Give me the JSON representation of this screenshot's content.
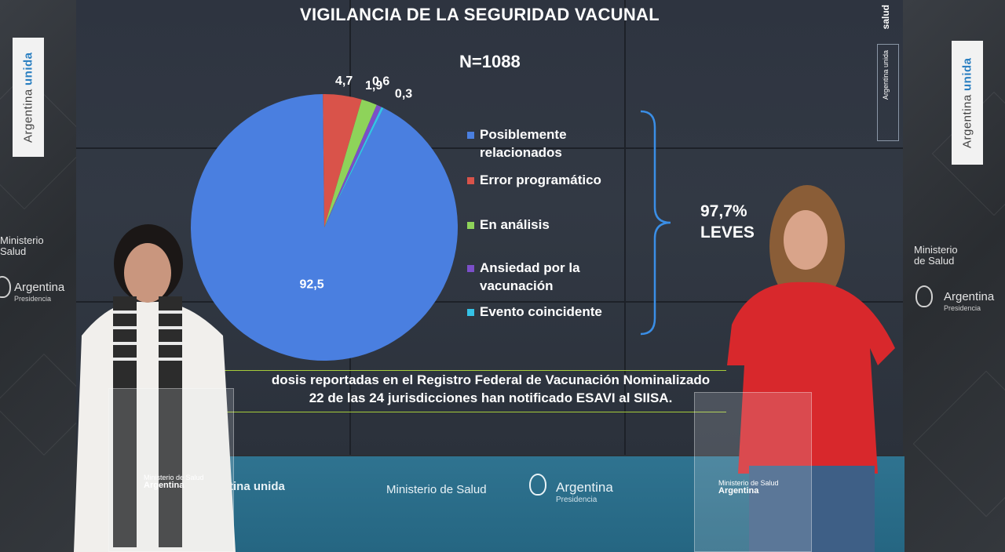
{
  "screen": {
    "title": "VIGILANCIA DE LA  SEGURIDAD VACUNAL",
    "n_label": "N=1088",
    "brand_salud": "salud",
    "brand_argentina": "Argentina unida",
    "summary_pct": "97,7%",
    "summary_label": "LEVES",
    "footnote_line1": "dosis reportadas en el Registro Federal de Vacunación Nominalizado",
    "footnote_line2": "22 de las 24 jurisdicciones han notificado ESAVI al SIISA."
  },
  "chart_data": {
    "type": "pie",
    "title": "VIGILANCIA DE LA  SEGURIDAD VACUNAL",
    "subtitle": "N=1088",
    "legend_position": "right",
    "slices": [
      {
        "label": "Posiblemente relacionados",
        "legend_lines": [
          "Posiblemente",
          "relacionados"
        ],
        "value": 92.5,
        "value_label": "92,5",
        "color": "#4a7fe0"
      },
      {
        "label": "Error programático",
        "legend_lines": [
          "Error programático"
        ],
        "value": 4.7,
        "value_label": "4,7",
        "color": "#d9534a"
      },
      {
        "label": "En análisis",
        "legend_lines": [
          "En análisis"
        ],
        "value": 1.9,
        "value_label": "1,9",
        "color": "#8ed35a"
      },
      {
        "label": "Ansiedad por la vacunación",
        "legend_lines": [
          "Ansiedad por la",
          "vacunación"
        ],
        "value": 0.6,
        "value_label": "0,6",
        "color": "#7b4fc9"
      },
      {
        "label": "Evento coincidente",
        "legend_lines": [
          "Evento coincidente"
        ],
        "value": 0.3,
        "value_label": "0,3",
        "color": "#35c2e6"
      }
    ]
  },
  "backdrop": {
    "left_banner": "Argentina",
    "left_banner_accent": "unida",
    "left_ministry": "Ministerio\nSalud",
    "left_argentina": "Argentina",
    "left_presidencia": "Presidencia",
    "right_banner": "Argentina",
    "right_banner_accent": "unida",
    "right_ministry_1": "Ministerio",
    "right_ministry_2": "de Salud",
    "right_argentina": "Argentina",
    "right_presidencia": "Presidencia",
    "floor_unida_prefix": "tina",
    "floor_unida": "unida",
    "floor_ministerio": "Ministerio de Salud",
    "floor_argentina": "Argentina",
    "floor_presidencia": "Presidencia",
    "podium_ministerio": "Ministerio de Salud",
    "podium_argentina": "Argentina"
  },
  "colors": {
    "screen_bg": "#2f3540",
    "brace": "#3a8ee6",
    "footnote_border": "#a6cc3a",
    "floor": "#2a6e8b",
    "shirt_red": "#d8282c"
  }
}
